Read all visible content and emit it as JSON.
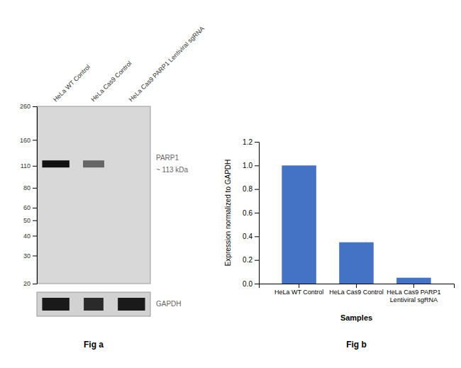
{
  "chart_data": [
    {
      "type": "blot",
      "title": "Fig a",
      "categories": [
        "HeLa WT Control",
        "HeLa Cas9 Control",
        "HeLa Cas9 PARP1 Lentiviral sgRNA"
      ],
      "ylim": [
        20,
        260
      ],
      "yticks": [
        260,
        160,
        110,
        80,
        60,
        50,
        40,
        30,
        20
      ],
      "log": "y",
      "series": [
        {
          "name": "PARP1",
          "values": [
            113,
            113,
            null
          ],
          "colors": [
            "#111111",
            "#666666",
            null
          ]
        },
        {
          "name": "GAPDH",
          "colors": [
            "#1a1a1a",
            "#2a2a2a",
            "#1a1a1a"
          ]
        }
      ],
      "annotations": [
        "~ 113 kDa"
      ]
    },
    {
      "type": "bar",
      "title": "Fig b",
      "categories": [
        "HeLa WT Control",
        "HeLa Cas9 Control",
        "HeLa Cas9 PARP1\nLentiviral sgRNA"
      ],
      "values": [
        1.0,
        0.35,
        0.05
      ],
      "color": "#4472c4",
      "ylim": [
        0,
        1.2
      ],
      "yticks": [
        {
          "value": 0,
          "label": "0.0"
        },
        0.2,
        0.4,
        0.6,
        0.8,
        {
          "value": 1.0,
          "label": "1.0"
        },
        1.2
      ],
      "ylabel": "Expression normalized to GAPDH",
      "xlabel": "Samples"
    }
  ]
}
